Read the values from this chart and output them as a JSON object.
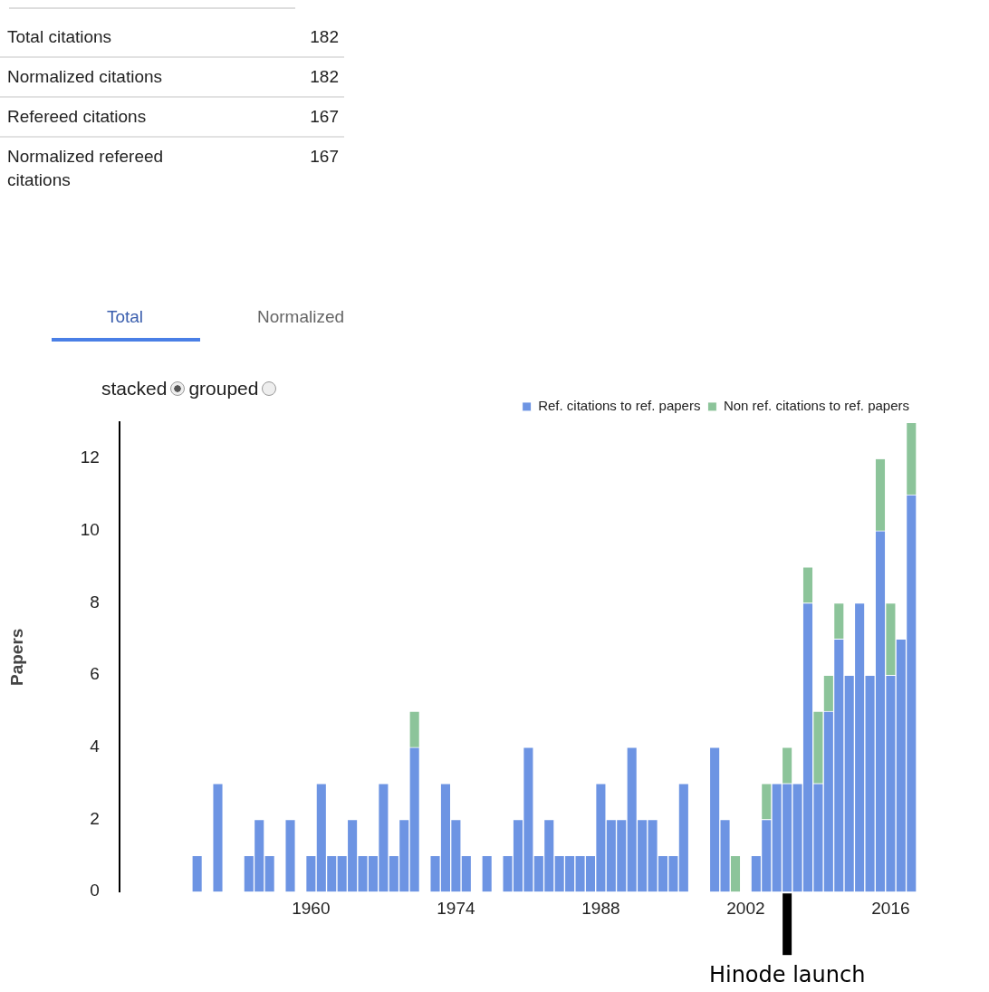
{
  "chart_data": [
    {
      "type": "other",
      "annotations": [
        "Total citations",
        "182",
        "Normalized citations",
        "182",
        "Refereed citations",
        "167",
        "Normalized refereed citations",
        "167"
      ]
    },
    {
      "type": "bar",
      "ylabel": "Papers",
      "stacked": true,
      "legend": "top right",
      "grid": false,
      "annotations": [
        "Total",
        "Normalized",
        "stacked",
        "grouped"
      ],
      "x": [
        1949,
        1951,
        1954,
        1955,
        1956,
        1958,
        1960,
        1961,
        1962,
        1963,
        1964,
        1965,
        1966,
        1967,
        1968,
        1969,
        1970,
        1972,
        1973,
        1974,
        1975,
        1977,
        1979,
        1980,
        1981,
        1982,
        1983,
        1984,
        1985,
        1986,
        1987,
        1988,
        1989,
        1990,
        1991,
        1992,
        1993,
        1994,
        1995,
        1996,
        1999,
        2000,
        2001,
        2003,
        2004,
        2005,
        2006,
        2007,
        2008,
        2009,
        2010,
        2011,
        2012,
        2013,
        2014,
        2015,
        2016,
        2017,
        2018
      ],
      "xlim": [
        1941.5,
        2018.5
      ],
      "xticks": [
        1960,
        1974,
        1988,
        2002,
        2016
      ],
      "ylim": [
        0,
        13
      ],
      "yticks": [
        0,
        2,
        4,
        6,
        8,
        10,
        12
      ],
      "series": [
        {
          "name": "Ref. citations to ref. papers",
          "color": "#6d94e3",
          "values": [
            1,
            3,
            1,
            2,
            1,
            2,
            1,
            3,
            1,
            1,
            2,
            1,
            1,
            3,
            1,
            2,
            4,
            1,
            3,
            2,
            1,
            1,
            1,
            2,
            4,
            1,
            2,
            1,
            1,
            1,
            1,
            3,
            2,
            2,
            4,
            2,
            2,
            1,
            1,
            3,
            4,
            2,
            0,
            1,
            2,
            3,
            3,
            3,
            8,
            3,
            5,
            7,
            6,
            8,
            6,
            10,
            6,
            7,
            11
          ]
        },
        {
          "name": "Non ref. citations to ref. papers",
          "color": "#8cc49a",
          "values": [
            null,
            null,
            null,
            null,
            null,
            null,
            null,
            null,
            null,
            null,
            null,
            null,
            null,
            null,
            null,
            null,
            1,
            null,
            null,
            null,
            null,
            null,
            null,
            null,
            null,
            null,
            null,
            null,
            null,
            null,
            null,
            null,
            null,
            null,
            null,
            null,
            null,
            null,
            null,
            null,
            null,
            null,
            1,
            null,
            1,
            null,
            1,
            null,
            1,
            2,
            1,
            1,
            null,
            null,
            null,
            2,
            2,
            null,
            2
          ]
        }
      ],
      "ref_lines": [
        {
          "axis": "x",
          "value": 2006,
          "label": "Hinode launch",
          "color": "#000000"
        }
      ]
    }
  ]
}
